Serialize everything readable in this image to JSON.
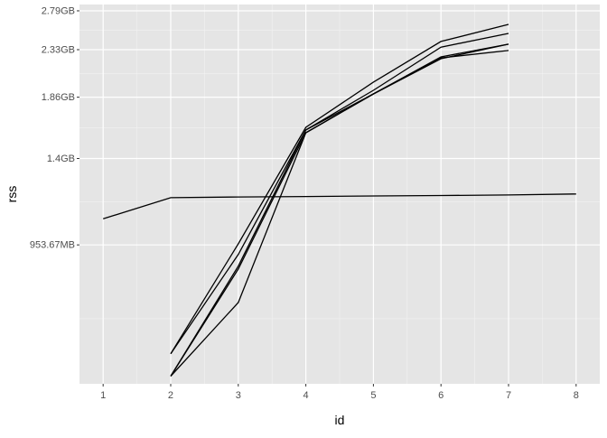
{
  "chart_data": {
    "type": "line",
    "title": "",
    "xlabel": "id",
    "ylabel": "rss",
    "y_scale": "log",
    "xlim": [
      0.65,
      8.35
    ],
    "ylim": [
      521000000,
      3090000000
    ],
    "x_ticks": [
      1,
      2,
      3,
      4,
      5,
      6,
      7,
      8
    ],
    "y_ticks": [
      {
        "value": 1000000000,
        "label": "953.67MB"
      },
      {
        "value": 1500000000,
        "label": "1.4GB"
      },
      {
        "value": 2000000000,
        "label": "1.86GB"
      },
      {
        "value": 2500000000,
        "label": "2.33GB"
      },
      {
        "value": 3000000000,
        "label": "2.79GB"
      }
    ],
    "y_minor": [
      707000000,
      1225000000,
      1732000000,
      2236000000,
      2739000000
    ],
    "grid": true,
    "line_color": "#000000",
    "panel_color": "#e5e5e5",
    "series": [
      {
        "x": [
          2,
          3,
          4,
          5,
          6,
          7
        ],
        "values": [
          600000000,
          1005000000,
          1736000000,
          2147000000,
          2598000000,
          2815000000
        ]
      },
      {
        "x": [
          2,
          3,
          4,
          5,
          6,
          7
        ],
        "values": [
          600000000,
          956000000,
          1715000000,
          2066000000,
          2530000000,
          2698000000
        ]
      },
      {
        "x": [
          2,
          3,
          4,
          5,
          6,
          7
        ],
        "values": [
          540000000,
          905000000,
          1715000000,
          2031000000,
          2417000000,
          2565000000
        ]
      },
      {
        "x": [
          2,
          3,
          4,
          5,
          6,
          7
        ],
        "values": [
          540000000,
          893000000,
          1693000000,
          2031000000,
          2396000000,
          2565000000
        ]
      },
      {
        "x": [
          2,
          3,
          4,
          5,
          6,
          7
        ],
        "values": [
          540000000,
          763000000,
          1693000000,
          2031000000,
          2405000000,
          2490000000
        ]
      },
      {
        "x": [
          1,
          2,
          3,
          4,
          5,
          6,
          7,
          8
        ],
        "values": [
          1130000000,
          1248000000,
          1252000000,
          1255000000,
          1258000000,
          1261000000,
          1264000000,
          1270000000
        ]
      }
    ]
  }
}
